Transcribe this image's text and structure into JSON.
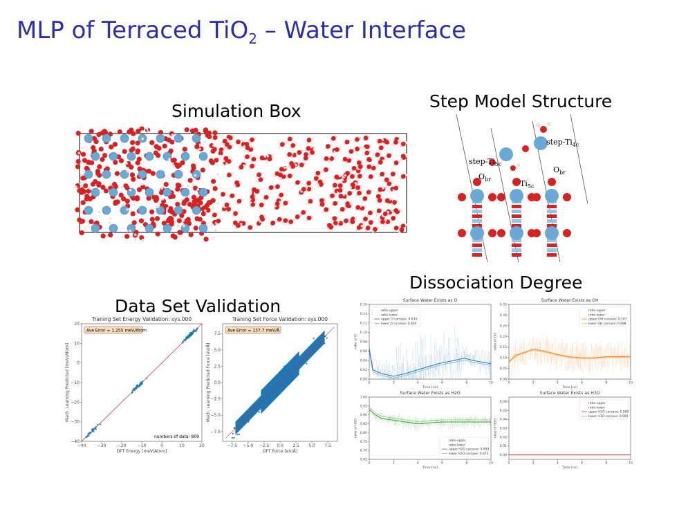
{
  "slide": {
    "title_main": "MLP of Terraced TiO",
    "title_sub": "2",
    "title_rest": " – Water Interface"
  },
  "sections": {
    "simbox": "Simulation Box",
    "step": "Step Model Structure",
    "dataset": "Data Set Validation",
    "dissoc": "Dissociation Degree"
  },
  "step_labels": {
    "step_ti5c": "step-Ti",
    "step_ti5c_sub": "5c",
    "step_ti4c": "step-Ti",
    "step_ti4c_sub": "4c",
    "obr1": "O",
    "obr1_sub": "br",
    "obr2": "O",
    "obr2_sub": "br",
    "ti5c": "Ti",
    "ti5c_sub": "5c"
  },
  "colors": {
    "ti": "#6aa9d6",
    "o": "#d82222",
    "h": "#f1dede",
    "blue": "#1f77b4",
    "orange": "#ff7f0e",
    "green": "#2ca02c",
    "red": "#d62728"
  },
  "chart_data": [
    {
      "type": "scatter",
      "title": "Traning Set Energy Validation: sys.000",
      "xlabel": "DFT Energy [meV/Atom]",
      "ylabel": "Mach. Learning Predicted [meV/Atom]",
      "xlim": [
        -40,
        20
      ],
      "ylim": [
        -40,
        20
      ],
      "xticks": [
        "−40",
        "−30",
        "−20",
        "−10",
        "0",
        "10",
        "20"
      ],
      "yticks": [
        "−40",
        "−30",
        "−20",
        "−10",
        "0",
        "10",
        "20"
      ],
      "box": "Ave Error =  1.255 meV/Atom",
      "note": "numbers of data: 809",
      "clusters": [
        {
          "x": -35,
          "y": -35,
          "n": 30,
          "s": 3
        },
        {
          "x": -12,
          "y": -12,
          "n": 45,
          "s": 2.5
        },
        {
          "x": 14,
          "y": 14,
          "n": 80,
          "s": 2.5
        }
      ]
    },
    {
      "type": "scatter",
      "title": "Traning Set Force Validation: sys.000",
      "xlabel": "DFT Force [eV/Å]",
      "ylabel": "Mach. Learning Predicted Force [eV/Å]",
      "xlim": [
        -9,
        9
      ],
      "ylim": [
        -9,
        9
      ],
      "xticks": [
        "−7.5",
        "−5.0",
        "−2.5",
        "0.0",
        "2.5",
        "5.0",
        "7.5"
      ],
      "yticks": [
        "−7.5",
        "−5.0",
        "−2.5",
        "0.0",
        "2.5",
        "5.0",
        "7.5"
      ],
      "box": "Ave Error =  137.7 meV/Å"
    },
    {
      "type": "line",
      "title": "Surface Water Exists as O",
      "xlabel": "Time [ns]",
      "ylabel": "ratio of O",
      "xlim": [
        0,
        10
      ],
      "ylim": [
        0,
        0.16
      ],
      "xticks": [
        "0",
        "2",
        "4",
        "6",
        "8",
        "10"
      ],
      "yticks": [
        "0.00",
        "0.02",
        "0.04",
        "0.06",
        "0.08",
        "0.10",
        "0.12",
        "0.14",
        "0.16"
      ],
      "legend": [
        "ratio-upper",
        "ratio-lower",
        "upper O curvave: 0.034",
        "lower O curvave: 0.030"
      ],
      "legend_loc": "top-left",
      "color": "#1f77b4",
      "curve": [
        [
          0,
          0.065
        ],
        [
          0.3,
          0.02
        ],
        [
          1,
          0.012
        ],
        [
          2,
          0.006
        ],
        [
          3,
          0.012
        ],
        [
          4,
          0.02
        ],
        [
          5,
          0.028
        ],
        [
          6,
          0.035
        ],
        [
          7,
          0.04
        ],
        [
          7.8,
          0.045
        ],
        [
          8.5,
          0.04
        ],
        [
          10,
          0.033
        ]
      ]
    },
    {
      "type": "line",
      "title": "Surface Water Exists as OH",
      "xlabel": "Time [ns]",
      "ylabel": "ratio of OH",
      "xlim": [
        0,
        10
      ],
      "ylim": [
        0,
        0.35
      ],
      "xticks": [
        "0",
        "2",
        "4",
        "6",
        "8",
        "10"
      ],
      "yticks": [
        "0.00",
        "0.05",
        "0.10",
        "0.15",
        "0.20",
        "0.25",
        "0.30",
        "0.35"
      ],
      "legend": [
        "ratio-upper",
        "ratio-lower",
        "upper OH curvave: 0.107",
        "lower OH curvave: 0.098"
      ],
      "legend_loc": "top-right",
      "color": "#ff7f0e",
      "curve": [
        [
          0,
          0.08
        ],
        [
          0.5,
          0.11
        ],
        [
          1,
          0.12
        ],
        [
          2,
          0.14
        ],
        [
          3,
          0.13
        ],
        [
          4,
          0.115
        ],
        [
          5,
          0.105
        ],
        [
          6,
          0.1
        ],
        [
          7,
          0.1
        ],
        [
          8,
          0.105
        ],
        [
          9,
          0.105
        ],
        [
          10,
          0.107
        ]
      ]
    },
    {
      "type": "line",
      "title": "Surface Water Exists as H2O",
      "xlabel": "Time [ns]",
      "ylabel": "ratio of H2O",
      "xlim": [
        0,
        10
      ],
      "ylim": [
        0.65,
        1.0
      ],
      "xticks": [
        "0",
        "2",
        "4",
        "6",
        "8",
        "10"
      ],
      "yticks": [
        "0.65",
        "0.70",
        "0.75",
        "0.80",
        "0.85",
        "0.90",
        "0.95",
        "1.00"
      ],
      "legend": [
        "ratio-upper",
        "ratio-lower",
        "upper H2O curvave: 0.859",
        "lower H2O curvave: 0.872"
      ],
      "legend_loc": "bottom-right",
      "color": "#2ca02c",
      "curve": [
        [
          0,
          0.93
        ],
        [
          0.5,
          0.9
        ],
        [
          1,
          0.88
        ],
        [
          2,
          0.87
        ],
        [
          3,
          0.86
        ],
        [
          4,
          0.85
        ],
        [
          5,
          0.855
        ],
        [
          6,
          0.86
        ],
        [
          7,
          0.86
        ],
        [
          8,
          0.86
        ],
        [
          10,
          0.86
        ]
      ]
    },
    {
      "type": "line",
      "title": "Surface Water Exists as H3O",
      "xlabel": "Time [ns]",
      "ylabel": "ratio of H3O",
      "xlim": [
        0,
        10
      ],
      "ylim": [
        -0.005,
        0.065
      ],
      "xticks": [
        "0",
        "2",
        "4",
        "6",
        "8",
        "10"
      ],
      "yticks": [
        "0.00",
        "0.01",
        "0.02",
        "0.03",
        "0.04",
        "0.05",
        "0.06"
      ],
      "legend": [
        "ratio-upper",
        "ratio-lower",
        "upper H3O curvave: 0.000",
        "lower H3O curvave: 0.000"
      ],
      "legend_loc": "top-right",
      "color": "#d62728",
      "curve": [
        [
          0,
          0
        ],
        [
          10,
          0
        ]
      ]
    }
  ]
}
